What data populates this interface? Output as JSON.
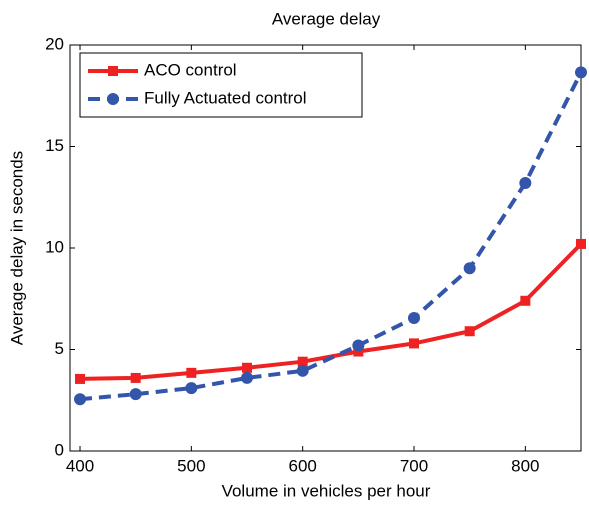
{
  "chart_data": {
    "type": "line",
    "title": "Average delay",
    "x_label": "Volume in vehicles per hour",
    "y_label": "Average delay in seconds",
    "x": [
      400,
      450,
      500,
      550,
      600,
      650,
      700,
      750,
      800,
      850
    ],
    "series": [
      {
        "name": "ACO control",
        "color": "#ee2222",
        "dash": "solid",
        "marker": "square",
        "values": [
          3.55,
          3.6,
          3.85,
          4.1,
          4.4,
          4.9,
          5.3,
          5.9,
          7.4,
          10.2
        ]
      },
      {
        "name": "Fully Actuated control",
        "color": "#3355aa",
        "dash": "dashed",
        "marker": "circle",
        "values": [
          2.55,
          2.8,
          3.1,
          3.6,
          3.95,
          5.2,
          6.55,
          9.0,
          13.2,
          18.65
        ]
      }
    ],
    "xlim": [
      391,
      850
    ],
    "ylim": [
      0,
      20
    ],
    "xticks": [
      400,
      500,
      600,
      700,
      800
    ],
    "yticks": [
      0,
      5,
      10,
      15,
      20
    ],
    "legend": "upper left"
  }
}
